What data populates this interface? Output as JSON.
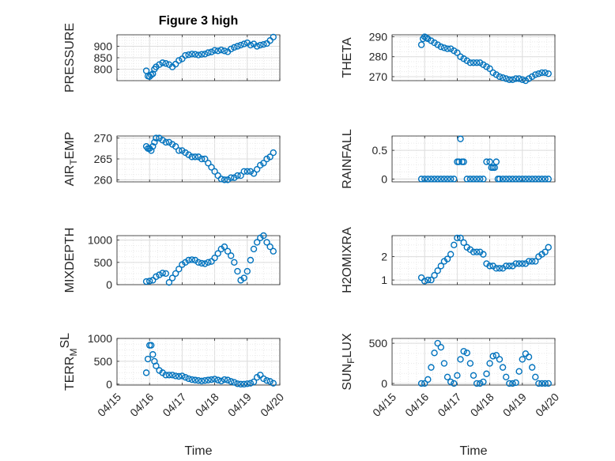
{
  "figure": {
    "title": "Figure 3 high"
  },
  "chart_data": [
    {
      "type": "scatter",
      "ylabel": "PRESSURE",
      "ylim": [
        750,
        950
      ],
      "yticks": [
        "800",
        "850",
        "900"
      ],
      "x": [
        15.9,
        15.95,
        16.0,
        16.05,
        16.1,
        16.15,
        16.2,
        16.3,
        16.4,
        16.5,
        16.6,
        16.7,
        16.8,
        16.9,
        17.0,
        17.1,
        17.2,
        17.3,
        17.4,
        17.5,
        17.6,
        17.7,
        17.8,
        17.9,
        18.0,
        18.1,
        18.2,
        18.3,
        18.4,
        18.5,
        18.6,
        18.7,
        18.8,
        18.9,
        19.0,
        19.1,
        19.2,
        19.3,
        19.4,
        19.5,
        19.6,
        19.7,
        19.8
      ],
      "y": [
        793,
        770,
        768,
        775,
        780,
        800,
        810,
        820,
        828,
        825,
        820,
        810,
        822,
        838,
        845,
        860,
        863,
        866,
        865,
        862,
        865,
        866,
        872,
        875,
        882,
        880,
        884,
        880,
        876,
        888,
        895,
        900,
        905,
        910,
        915,
        905,
        910,
        900,
        905,
        908,
        912,
        925,
        940
      ]
    },
    {
      "type": "scatter",
      "ylabel": "THETA",
      "ylim": [
        268,
        291
      ],
      "yticks": [
        "270",
        "280",
        "290"
      ],
      "x": [
        15.9,
        15.95,
        16.0,
        16.05,
        16.1,
        16.2,
        16.3,
        16.4,
        16.5,
        16.6,
        16.7,
        16.8,
        16.9,
        17.0,
        17.1,
        17.2,
        17.3,
        17.4,
        17.5,
        17.6,
        17.7,
        17.8,
        17.9,
        18.0,
        18.1,
        18.2,
        18.3,
        18.4,
        18.5,
        18.6,
        18.7,
        18.8,
        18.9,
        19.0,
        19.1,
        19.2,
        19.3,
        19.4,
        19.5,
        19.6,
        19.7,
        19.8
      ],
      "y": [
        286,
        289,
        290,
        289.5,
        289,
        288,
        287,
        286,
        285,
        284.5,
        284,
        284,
        283,
        282,
        280,
        279,
        278,
        277,
        277,
        277,
        277,
        276,
        275,
        274,
        272,
        271,
        270,
        269.5,
        269,
        268.5,
        268.5,
        269,
        269,
        268.5,
        268,
        269,
        270,
        271,
        271.5,
        272,
        272,
        271.5
      ]
    },
    {
      "type": "scatter",
      "ylabel": "AIR_TEMP",
      "ylim": [
        259.5,
        270.5
      ],
      "yticks": [
        "260",
        "265",
        "270"
      ],
      "x": [
        15.9,
        15.95,
        16.0,
        16.05,
        16.1,
        16.15,
        16.2,
        16.3,
        16.4,
        16.5,
        16.6,
        16.7,
        16.8,
        16.9,
        17.0,
        17.1,
        17.2,
        17.3,
        17.4,
        17.5,
        17.6,
        17.7,
        17.8,
        17.9,
        18.0,
        18.1,
        18.2,
        18.3,
        18.4,
        18.5,
        18.6,
        18.7,
        18.8,
        18.9,
        19.0,
        19.1,
        19.2,
        19.3,
        19.4,
        19.5,
        19.6,
        19.7,
        19.8
      ],
      "y": [
        268,
        267.5,
        267.5,
        267,
        268,
        269,
        270,
        270,
        269.5,
        269,
        269,
        268.5,
        268,
        267,
        267,
        266.5,
        266,
        265.5,
        265.5,
        265.5,
        265,
        265,
        264,
        263,
        262,
        261,
        260.2,
        260,
        260,
        260.5,
        260.5,
        261,
        261,
        262,
        262,
        262,
        261.5,
        262.5,
        263.5,
        264,
        265,
        265.5,
        266.5
      ]
    },
    {
      "type": "scatter",
      "ylabel": "RAINFALL",
      "ylim": [
        -0.05,
        0.75
      ],
      "yticks": [
        "0",
        "0.5"
      ],
      "x": [
        15.9,
        16.0,
        16.1,
        16.2,
        16.3,
        16.4,
        16.5,
        16.6,
        16.7,
        16.8,
        16.9,
        17.0,
        17.05,
        17.1,
        17.15,
        17.2,
        17.3,
        17.4,
        17.5,
        17.6,
        17.7,
        17.8,
        17.9,
        18.0,
        18.05,
        18.1,
        18.15,
        18.2,
        18.25,
        18.3,
        18.4,
        18.5,
        18.6,
        18.7,
        18.8,
        18.9,
        19.0,
        19.1,
        19.2,
        19.3,
        19.4,
        19.5,
        19.6,
        19.7,
        19.8
      ],
      "y": [
        0,
        0,
        0,
        0,
        0,
        0,
        0,
        0,
        0,
        0,
        0,
        0.3,
        0.3,
        0.7,
        0.3,
        0.3,
        0,
        0,
        0,
        0,
        0,
        0,
        0.3,
        0.3,
        0.2,
        0.2,
        0.2,
        0.3,
        0,
        0,
        0,
        0,
        0,
        0,
        0,
        0,
        0,
        0,
        0,
        0,
        0,
        0,
        0,
        0,
        0
      ]
    },
    {
      "type": "scatter",
      "ylabel": "MIXDEPTH",
      "ylim": [
        0,
        1100
      ],
      "yticks": [
        "0",
        "500",
        "1000"
      ],
      "x": [
        15.9,
        16.0,
        16.1,
        16.2,
        16.3,
        16.4,
        16.5,
        16.6,
        16.7,
        16.8,
        16.9,
        17.0,
        17.1,
        17.2,
        17.3,
        17.4,
        17.5,
        17.6,
        17.7,
        17.8,
        17.9,
        18.0,
        18.1,
        18.2,
        18.3,
        18.4,
        18.5,
        18.6,
        18.7,
        18.8,
        18.9,
        19.0,
        19.1,
        19.2,
        19.3,
        19.4,
        19.5,
        19.6,
        19.7,
        19.8
      ],
      "y": [
        70,
        80,
        100,
        180,
        220,
        260,
        250,
        50,
        150,
        250,
        350,
        450,
        500,
        550,
        560,
        550,
        500,
        480,
        470,
        500,
        520,
        600,
        700,
        800,
        850,
        750,
        650,
        500,
        300,
        100,
        150,
        300,
        550,
        800,
        950,
        1050,
        1100,
        950,
        850,
        750
      ]
    },
    {
      "type": "scatter",
      "ylabel": "H2OMIXRA",
      "ylim": [
        0.8,
        2.9
      ],
      "yticks": [
        "1",
        "2"
      ],
      "x": [
        15.9,
        16.0,
        16.1,
        16.2,
        16.3,
        16.4,
        16.5,
        16.6,
        16.7,
        16.8,
        16.9,
        17.0,
        17.1,
        17.2,
        17.3,
        17.4,
        17.5,
        17.6,
        17.7,
        17.8,
        17.9,
        18.0,
        18.1,
        18.2,
        18.3,
        18.4,
        18.5,
        18.6,
        18.7,
        18.8,
        18.9,
        19.0,
        19.1,
        19.2,
        19.3,
        19.4,
        19.5,
        19.6,
        19.7,
        19.8
      ],
      "y": [
        1.1,
        0.95,
        1.0,
        1.0,
        1.2,
        1.4,
        1.6,
        1.8,
        1.9,
        2.1,
        2.5,
        2.8,
        2.8,
        2.6,
        2.4,
        2.3,
        2.2,
        2.2,
        2.2,
        2.1,
        1.7,
        1.6,
        1.6,
        1.5,
        1.5,
        1.5,
        1.6,
        1.6,
        1.6,
        1.7,
        1.7,
        1.7,
        1.7,
        1.8,
        1.8,
        1.8,
        2.0,
        2.1,
        2.2,
        2.4
      ]
    },
    {
      "type": "scatter",
      "ylabel": "TERR_MSL",
      "ylim": [
        -20,
        1000
      ],
      "yticks": [
        "0",
        "500",
        "1000"
      ],
      "x": [
        15.9,
        15.95,
        16.0,
        16.05,
        16.1,
        16.15,
        16.2,
        16.3,
        16.4,
        16.5,
        16.6,
        16.7,
        16.8,
        16.9,
        17.0,
        17.1,
        17.2,
        17.3,
        17.4,
        17.5,
        17.6,
        17.7,
        17.8,
        17.9,
        18.0,
        18.1,
        18.2,
        18.3,
        18.4,
        18.5,
        18.6,
        18.7,
        18.8,
        18.9,
        19.0,
        19.1,
        19.2,
        19.3,
        19.4,
        19.5,
        19.6,
        19.7,
        19.8
      ],
      "y": [
        250,
        550,
        850,
        850,
        650,
        500,
        400,
        300,
        250,
        200,
        200,
        200,
        180,
        170,
        180,
        150,
        120,
        100,
        90,
        80,
        70,
        80,
        90,
        100,
        110,
        90,
        70,
        100,
        90,
        60,
        40,
        10,
        0,
        0,
        10,
        20,
        50,
        150,
        200,
        120,
        80,
        60,
        20
      ]
    },
    {
      "type": "scatter",
      "ylabel": "SUN_FLUX",
      "ylim": [
        -20,
        560
      ],
      "yticks": [
        "0",
        "500"
      ],
      "x": [
        15.9,
        16.0,
        16.1,
        16.2,
        16.3,
        16.4,
        16.5,
        16.6,
        16.7,
        16.8,
        16.9,
        17.0,
        17.1,
        17.2,
        17.3,
        17.4,
        17.5,
        17.6,
        17.7,
        17.8,
        17.9,
        18.0,
        18.1,
        18.2,
        18.3,
        18.4,
        18.5,
        18.6,
        18.7,
        18.8,
        18.9,
        19.0,
        19.1,
        19.2,
        19.3,
        19.4,
        19.5,
        19.6,
        19.7,
        19.8
      ],
      "y": [
        0,
        0,
        50,
        200,
        380,
        500,
        450,
        250,
        80,
        20,
        0,
        100,
        300,
        400,
        380,
        250,
        100,
        0,
        0,
        20,
        120,
        250,
        340,
        350,
        300,
        200,
        80,
        0,
        0,
        10,
        150,
        300,
        370,
        330,
        200,
        80,
        0,
        0,
        0,
        0
      ],
      "xticks": [
        "04/15",
        "04/16",
        "04/17",
        "04/18",
        "04/19",
        "04/20"
      ],
      "xlabel": "Time"
    }
  ]
}
